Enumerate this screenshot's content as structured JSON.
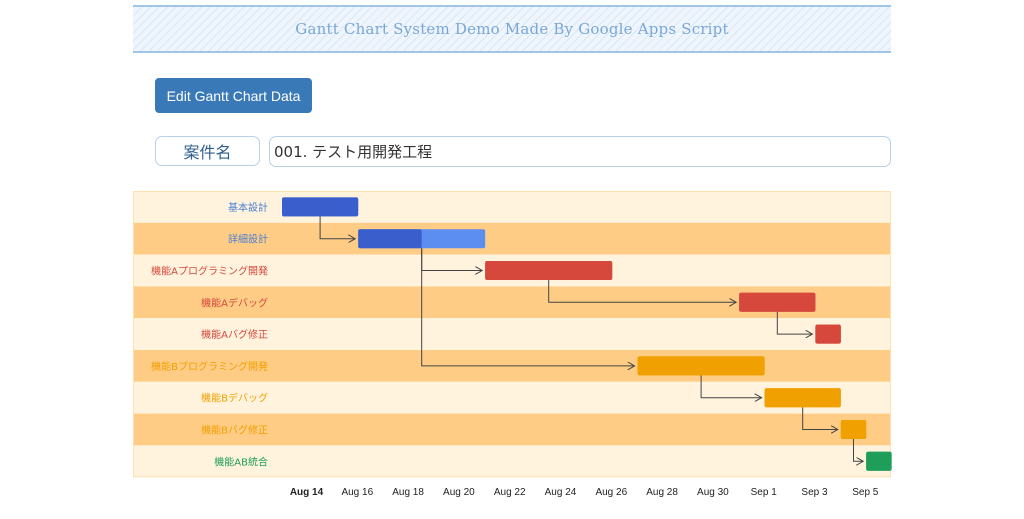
{
  "header": {
    "title": "Gantt Chart System Demo Made By Google Apps Script"
  },
  "toolbar": {
    "edit_label": "Edit Gantt Chart Data"
  },
  "project": {
    "label": "案件名",
    "value": "001. テスト用開発工程"
  },
  "chart_data": {
    "type": "gantt",
    "x_axis": {
      "ticks": [
        "Aug 14",
        "Aug 16",
        "Aug 18",
        "Aug 20",
        "Aug 22",
        "Aug 24",
        "Aug 26",
        "Aug 28",
        "Aug 30",
        "Sep 1",
        "Sep 3",
        "Sep 5"
      ],
      "bold_tick": "Aug 14"
    },
    "tasks": [
      {
        "id": "t1",
        "name": "基本設計",
        "start": "2023-08-14",
        "end": "2023-08-17",
        "progress": 1.0,
        "color": "#3a5fcd",
        "light": "#5b8ef0",
        "label_color": "#4a7fd4",
        "depends_on": null
      },
      {
        "id": "t2",
        "name": "詳細設計",
        "start": "2023-08-17",
        "end": "2023-08-22",
        "progress": 0.5,
        "color": "#3a5fcd",
        "light": "#5b8ef0",
        "label_color": "#4a7fd4",
        "depends_on": "t1"
      },
      {
        "id": "t3",
        "name": "機能Aプログラミング開発",
        "start": "2023-08-22",
        "end": "2023-08-27",
        "progress": 1.0,
        "color": "#d6473c",
        "light": "#d6473c",
        "label_color": "#d6473c",
        "depends_on": "t2"
      },
      {
        "id": "t4",
        "name": "機能Aデバッグ",
        "start": "2023-09-01",
        "end": "2023-09-04",
        "progress": 1.0,
        "color": "#d6473c",
        "light": "#d6473c",
        "label_color": "#d6473c",
        "depends_on": "t3"
      },
      {
        "id": "t5",
        "name": "機能Aバグ修正",
        "start": "2023-09-04",
        "end": "2023-09-05",
        "progress": 1.0,
        "color": "#d6473c",
        "light": "#d6473c",
        "label_color": "#d6473c",
        "depends_on": "t4"
      },
      {
        "id": "t6",
        "name": "機能Bプログラミング開発",
        "start": "2023-08-28",
        "end": "2023-09-02",
        "progress": 1.0,
        "color": "#f0a000",
        "light": "#f0a000",
        "label_color": "#f0a000",
        "depends_on": "t2"
      },
      {
        "id": "t7",
        "name": "機能Bデバッグ",
        "start": "2023-09-02",
        "end": "2023-09-05",
        "progress": 1.0,
        "color": "#f0a000",
        "light": "#f0a000",
        "label_color": "#f0a000",
        "depends_on": "t6"
      },
      {
        "id": "t8",
        "name": "機能Bバグ修正",
        "start": "2023-09-05",
        "end": "2023-09-06",
        "progress": 1.0,
        "color": "#f0a000",
        "light": "#f0a000",
        "label_color": "#f0a000",
        "depends_on": "t7"
      },
      {
        "id": "t9",
        "name": "機能AB統合",
        "start": "2023-09-06",
        "end": "2023-09-07",
        "progress": 1.0,
        "color": "#1f9e5a",
        "light": "#1f9e5a",
        "label_color": "#1f9e5a",
        "depends_on": "t8"
      }
    ],
    "row_colors": [
      "#fff3dd",
      "#ffcc85"
    ]
  }
}
